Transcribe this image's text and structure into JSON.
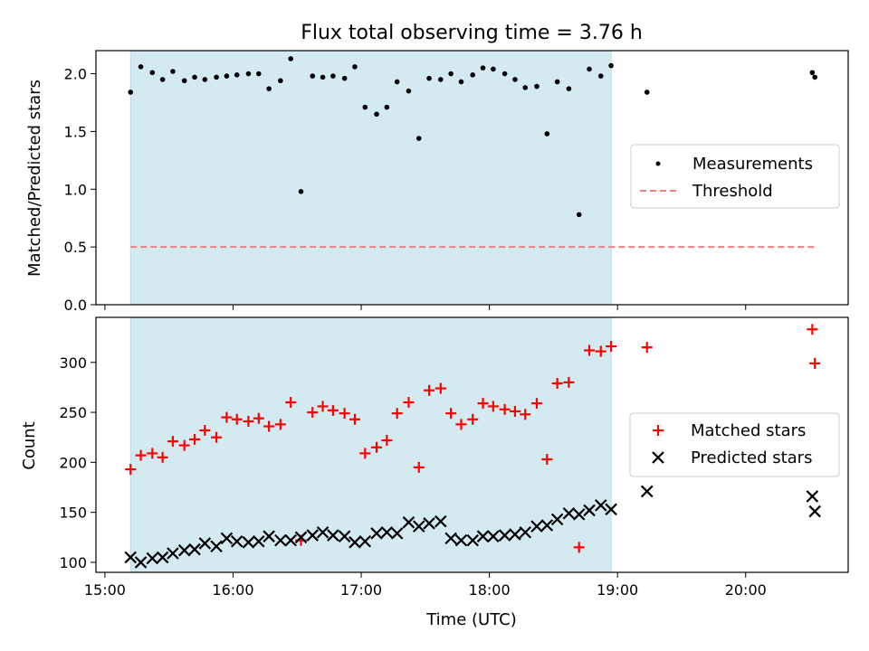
{
  "title": "Flux total observing time = 3.76 h",
  "colors": {
    "observing_band": "#d4eaf1",
    "measurements": "#000000",
    "threshold": "#f08080",
    "matched": "#ff0000",
    "predicted": "#000000"
  },
  "chart_data": [
    {
      "type": "scatter",
      "ylabel": "Matched/Predicted stars",
      "xlim": [
        14.93,
        20.8
      ],
      "ylim": [
        0,
        2.2
      ],
      "yticks": [
        0.0,
        0.5,
        1.0,
        1.5,
        2.0
      ],
      "ytick_labels": [
        "0.0",
        "0.5",
        "1.0",
        "1.5",
        "2.0"
      ],
      "shaded_band": {
        "x_start": 15.2,
        "x_end": 18.95
      },
      "legend_position": "center-right",
      "threshold": {
        "name": "Threshold",
        "y": 0.5,
        "x_range": [
          15.2,
          20.55
        ],
        "style": "dashed"
      },
      "series": [
        {
          "name": "Measurements",
          "marker": "dot",
          "x": [
            15.2,
            15.28,
            15.37,
            15.45,
            15.53,
            15.62,
            15.7,
            15.78,
            15.87,
            15.95,
            16.03,
            16.12,
            16.2,
            16.28,
            16.37,
            16.45,
            16.53,
            16.62,
            16.7,
            16.78,
            16.87,
            16.95,
            17.03,
            17.12,
            17.2,
            17.28,
            17.37,
            17.45,
            17.53,
            17.62,
            17.7,
            17.78,
            17.87,
            17.95,
            18.03,
            18.12,
            18.2,
            18.28,
            18.37,
            18.45,
            18.53,
            18.62,
            18.7,
            18.78,
            18.87,
            18.95,
            19.23,
            20.52,
            20.54
          ],
          "y": [
            1.84,
            2.06,
            2.01,
            1.95,
            2.02,
            1.94,
            1.97,
            1.95,
            1.97,
            1.98,
            1.99,
            2.0,
            2.0,
            1.87,
            1.94,
            2.13,
            0.98,
            1.98,
            1.97,
            1.98,
            1.96,
            2.06,
            1.71,
            1.65,
            1.71,
            1.93,
            1.85,
            1.44,
            1.96,
            1.95,
            2.0,
            1.93,
            1.99,
            2.05,
            2.04,
            2.0,
            1.95,
            1.88,
            1.89,
            1.48,
            1.93,
            1.87,
            0.78,
            2.04,
            1.98,
            2.07,
            1.84,
            2.01,
            1.97
          ]
        }
      ]
    },
    {
      "type": "scatter",
      "ylabel": "Count",
      "xlabel": "Time (UTC)",
      "xlim": [
        14.93,
        20.8
      ],
      "ylim": [
        90,
        345
      ],
      "xticks": [
        15,
        16,
        17,
        18,
        19,
        20
      ],
      "xtick_labels": [
        "15:00",
        "16:00",
        "17:00",
        "18:00",
        "19:00",
        "20:00"
      ],
      "yticks": [
        100,
        150,
        200,
        250,
        300
      ],
      "ytick_labels": [
        "100",
        "150",
        "200",
        "250",
        "300"
      ],
      "shaded_band": {
        "x_start": 15.2,
        "x_end": 18.95
      },
      "legend_position": "center-right",
      "series": [
        {
          "name": "Matched stars",
          "marker": "plus",
          "x": [
            15.2,
            15.28,
            15.37,
            15.45,
            15.53,
            15.62,
            15.7,
            15.78,
            15.87,
            15.95,
            16.03,
            16.12,
            16.2,
            16.28,
            16.37,
            16.45,
            16.53,
            16.62,
            16.7,
            16.78,
            16.87,
            16.95,
            17.03,
            17.12,
            17.2,
            17.28,
            17.37,
            17.45,
            17.53,
            17.62,
            17.7,
            17.78,
            17.87,
            17.95,
            18.03,
            18.12,
            18.2,
            18.28,
            18.37,
            18.45,
            18.53,
            18.62,
            18.7,
            18.78,
            18.87,
            18.95,
            19.23,
            20.52,
            20.54
          ],
          "y": [
            193,
            207,
            209,
            205,
            221,
            217,
            223,
            232,
            225,
            245,
            243,
            241,
            244,
            236,
            238,
            260,
            122,
            250,
            256,
            252,
            249,
            243,
            209,
            215,
            222,
            249,
            260,
            195,
            272,
            274,
            249,
            238,
            243,
            259,
            256,
            253,
            251,
            248,
            259,
            203,
            279,
            280,
            115,
            312,
            311,
            316,
            315,
            333,
            299
          ]
        },
        {
          "name": "Predicted stars",
          "marker": "x",
          "x": [
            15.2,
            15.28,
            15.37,
            15.45,
            15.53,
            15.62,
            15.7,
            15.78,
            15.87,
            15.95,
            16.03,
            16.12,
            16.2,
            16.28,
            16.37,
            16.45,
            16.53,
            16.62,
            16.7,
            16.78,
            16.87,
            16.95,
            17.03,
            17.12,
            17.2,
            17.28,
            17.37,
            17.45,
            17.53,
            17.62,
            17.7,
            17.78,
            17.87,
            17.95,
            18.03,
            18.12,
            18.2,
            18.28,
            18.37,
            18.45,
            18.53,
            18.62,
            18.7,
            18.78,
            18.87,
            18.95,
            19.23,
            20.52,
            20.54
          ],
          "y": [
            105,
            100,
            104,
            105,
            109,
            112,
            113,
            119,
            116,
            124,
            121,
            120,
            121,
            126,
            122,
            122,
            125,
            127,
            130,
            127,
            126,
            120,
            121,
            129,
            130,
            129,
            140,
            136,
            139,
            141,
            124,
            122,
            122,
            126,
            126,
            127,
            128,
            130,
            136,
            137,
            143,
            149,
            148,
            152,
            157,
            153,
            171,
            166,
            151
          ]
        }
      ]
    }
  ]
}
